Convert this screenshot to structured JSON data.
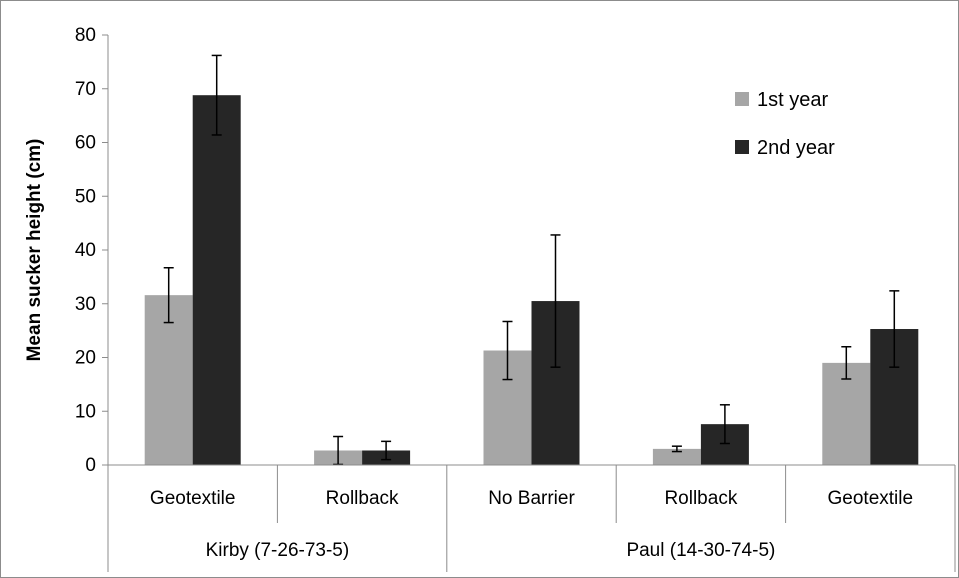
{
  "chart_data": {
    "type": "bar",
    "ylabel": "Mean sucker height (cm)",
    "xlabel": "",
    "ylim": [
      0,
      80
    ],
    "yticks": [
      0,
      10,
      20,
      30,
      40,
      50,
      60,
      70,
      80
    ],
    "grid": false,
    "legend_position": "top-right",
    "categories": [
      "Geotextile",
      "Rollback",
      "No Barrier",
      "Rollback",
      "Geotextile"
    ],
    "groups": [
      {
        "label": "Kirby (7-26-73-5)",
        "categories": [
          0,
          1
        ]
      },
      {
        "label": "Paul (14-30-74-5)",
        "categories": [
          2,
          3,
          4
        ]
      }
    ],
    "series": [
      {
        "name": "1st year",
        "color": "#a6a6a6",
        "values": [
          31.6,
          2.7,
          21.3,
          3.0,
          19.0
        ],
        "error": [
          5.1,
          2.6,
          5.4,
          0.5,
          3.0
        ]
      },
      {
        "name": "2nd year",
        "color": "#262626",
        "values": [
          68.8,
          2.7,
          30.5,
          7.6,
          25.3
        ],
        "error": [
          7.4,
          1.7,
          12.3,
          3.6,
          7.1
        ]
      }
    ]
  }
}
